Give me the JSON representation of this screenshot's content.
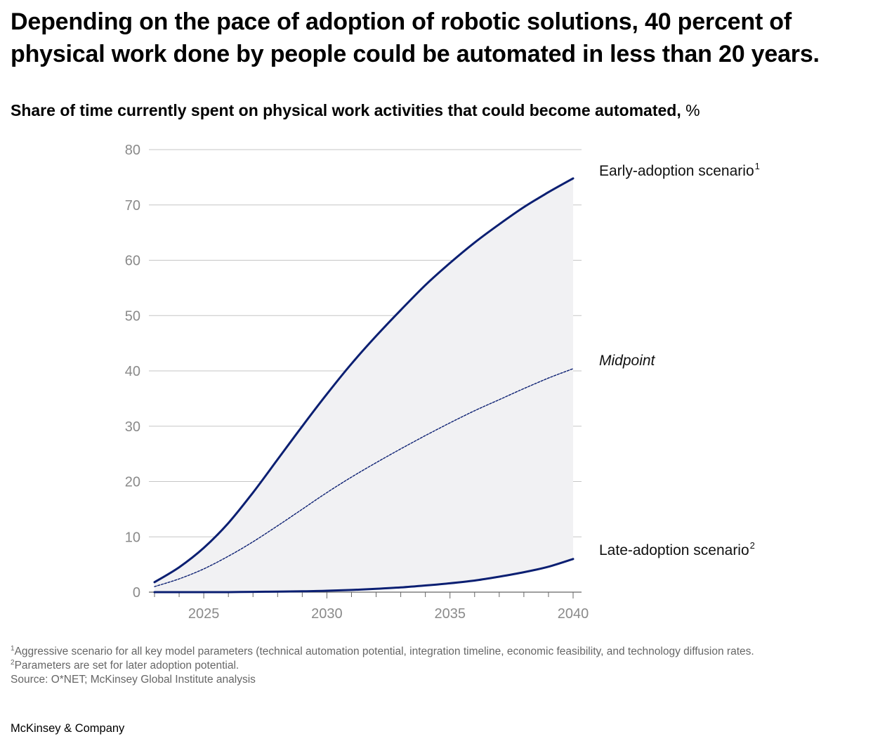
{
  "headline": "Depending on the pace of adoption of robotic solutions, 40 percent of physical work done by people could be automated in less than 20 years.",
  "subtitle": {
    "text": "Share of time currently spent on physical work activities that could become automated,",
    "unit": "%"
  },
  "footnotes": [
    {
      "sup": "1",
      "text": "Aggressive scenario for all key model parameters (technical automation potential, integration timeline, economic feasibility, and technology diffusion rates."
    },
    {
      "sup": "2",
      "text": "Parameters are set for later adoption potential."
    },
    {
      "sup": "",
      "text": "Source: O*NET; McKinsey Global Institute analysis"
    }
  ],
  "brand": "McKinsey & Company",
  "colors": {
    "line": "#0b1f72",
    "band": "#f1f1f3",
    "grid": "#c6c6c6",
    "axis": "#666666",
    "tick_text": "#8a8a8a"
  },
  "chart_data": {
    "type": "line",
    "title": "Share of time currently spent on physical work activities that could become automated, %",
    "xlabel": "",
    "ylabel": "",
    "xlim": [
      2023,
      2040
    ],
    "ylim": [
      0,
      80
    ],
    "x_ticks": [
      2025,
      2030,
      2035,
      2040
    ],
    "y_ticks": [
      0,
      10,
      20,
      30,
      40,
      50,
      60,
      70,
      80
    ],
    "grid": true,
    "shaded_band_between": [
      "Late-adoption scenario",
      "Early-adoption scenario"
    ],
    "x": [
      2023,
      2024,
      2025,
      2026,
      2027,
      2028,
      2029,
      2030,
      2031,
      2032,
      2033,
      2034,
      2035,
      2036,
      2037,
      2038,
      2039,
      2040
    ],
    "series": [
      {
        "name": "Early-adoption scenario",
        "sup": "1",
        "style": "solid",
        "values": [
          1.8,
          4.5,
          8.0,
          12.5,
          18.0,
          24.0,
          30.0,
          35.8,
          41.3,
          46.3,
          51.0,
          55.5,
          59.5,
          63.2,
          66.5,
          69.6,
          72.3,
          74.8
        ]
      },
      {
        "name": "Midpoint",
        "sup": "",
        "style": "dotted",
        "values": [
          1.0,
          2.4,
          4.2,
          6.5,
          9.1,
          12.0,
          15.0,
          18.0,
          20.8,
          23.4,
          25.9,
          28.3,
          30.6,
          32.8,
          34.8,
          36.8,
          38.7,
          40.4
        ]
      },
      {
        "name": "Late-adoption scenario",
        "sup": "2",
        "style": "solid",
        "values": [
          0.0,
          0.0,
          0.0,
          0.0,
          0.05,
          0.1,
          0.15,
          0.25,
          0.4,
          0.6,
          0.85,
          1.2,
          1.6,
          2.1,
          2.8,
          3.6,
          4.6,
          6.0
        ]
      }
    ]
  }
}
